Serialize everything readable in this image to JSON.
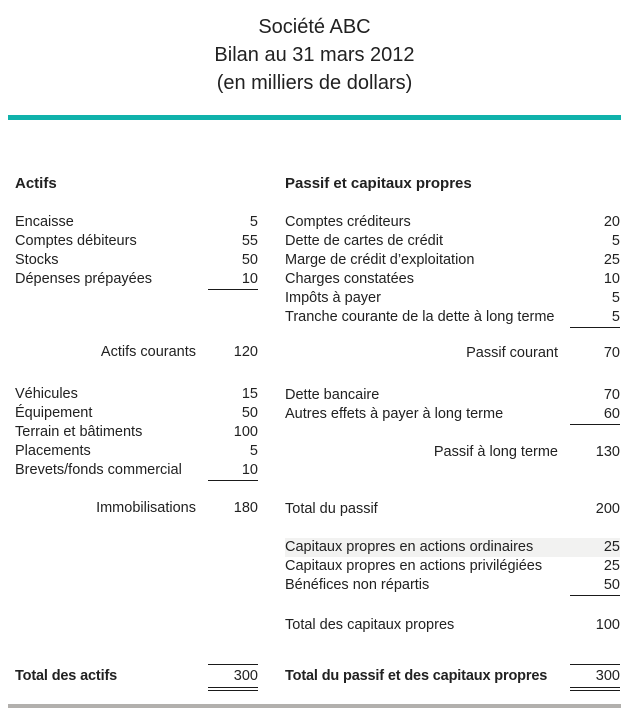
{
  "title": {
    "company": "Société ABC",
    "statement": "Bilan au 31 mars 2012",
    "units": "(en milliers de dollars)"
  },
  "colors": {
    "accent_rule": "#10b2ab",
    "bottom_rule": "#b2b0ad",
    "text": "#212121",
    "row_highlight": "#f2f2f1"
  },
  "columns": {
    "left": {
      "heading": "Actifs",
      "sections": [
        {
          "type": "items",
          "rows": [
            {
              "label": "Encaisse",
              "value": 5
            },
            {
              "label": "Comptes débiteurs",
              "value": 55
            },
            {
              "label": "Stocks",
              "value": 50
            },
            {
              "label": "Dépenses prépayées",
              "value": 10,
              "underline": true
            }
          ]
        },
        {
          "type": "subtotal",
          "label": "Actifs courants",
          "value": 120
        },
        {
          "type": "items",
          "rows": [
            {
              "label": "Véhicules",
              "value": 15
            },
            {
              "label": "Équipement",
              "value": 50
            },
            {
              "label": "Terrain et bâtiments",
              "value": 100
            },
            {
              "label": "Placements",
              "value": 5
            },
            {
              "label": "Brevets/fonds commercial",
              "value": 10,
              "underline": true
            }
          ]
        },
        {
          "type": "subtotal",
          "label": "Immobilisations",
          "value": 180
        },
        {
          "type": "total",
          "label": "Total des actifs",
          "value": 300
        }
      ]
    },
    "right": {
      "heading": "Passif et capitaux propres",
      "sections": [
        {
          "type": "items",
          "rows": [
            {
              "label": "Comptes créditeurs",
              "value": 20
            },
            {
              "label": "Dette de cartes de crédit",
              "value": 5
            },
            {
              "label": "Marge de crédit d’exploitation",
              "value": 25
            },
            {
              "label": "Charges constatées",
              "value": 10
            },
            {
              "label": "Impôts à payer",
              "value": 5
            },
            {
              "label": "Tranche courante de la dette à long terme",
              "value": 5,
              "underline": true
            }
          ]
        },
        {
          "type": "subtotal",
          "label": "Passif courant",
          "value": 70
        },
        {
          "type": "items",
          "rows": [
            {
              "label": "Dette bancaire",
              "value": 70
            },
            {
              "label": "Autres effets à payer à long terme",
              "value": 60,
              "underline": true
            }
          ]
        },
        {
          "type": "subtotal",
          "label": "Passif à long terme",
          "value": 130
        },
        {
          "type": "line",
          "label": "Total du passif",
          "value": 200
        },
        {
          "type": "items",
          "rows": [
            {
              "label": "Capitaux propres en actions ordinaires",
              "value": 25,
              "highlight": true
            },
            {
              "label": "Capitaux propres en actions privilégiées",
              "value": 25
            },
            {
              "label": "Bénéfices non répartis",
              "value": 50,
              "underline": true
            }
          ]
        },
        {
          "type": "line",
          "label": "Total des capitaux propres",
          "value": 100
        },
        {
          "type": "total",
          "label": "Total du passif et des capitaux propres",
          "value": 300
        }
      ]
    }
  }
}
